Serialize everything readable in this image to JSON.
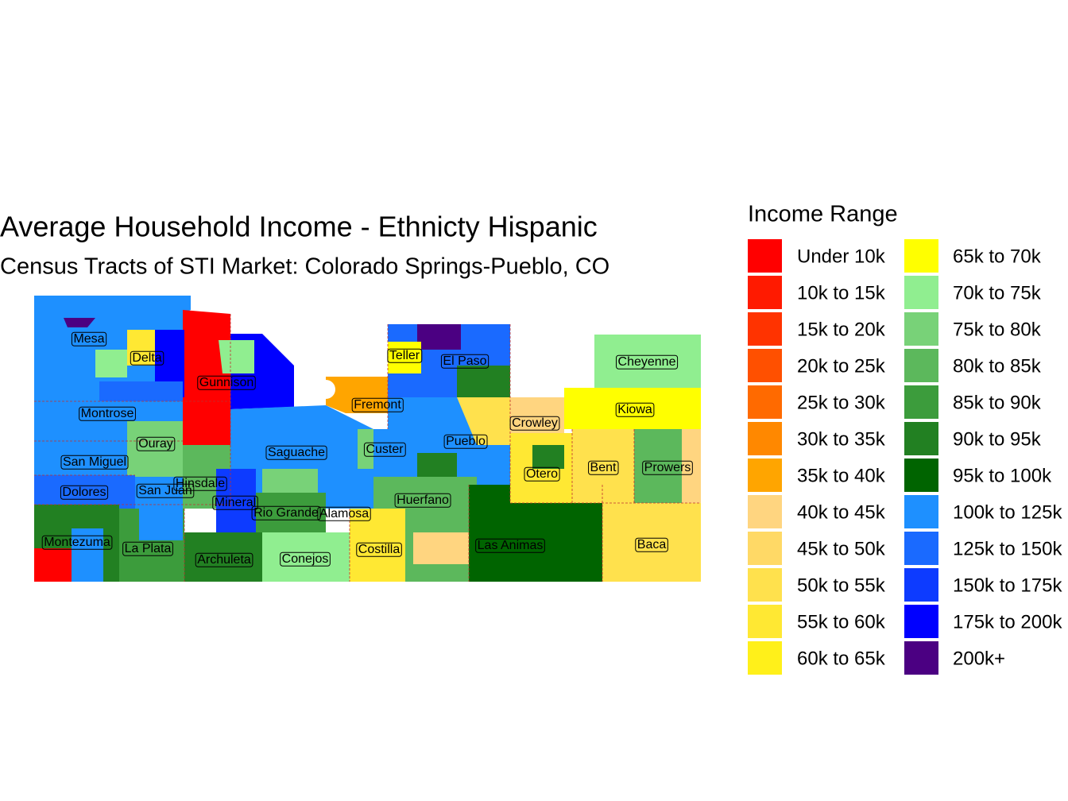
{
  "title": "Average Household Income - Ethnicty Hispanic",
  "subtitle": "Census Tracts of STI Market: Colorado Springs-Pueblo, CO",
  "legend": {
    "title": "Income Range",
    "items": [
      {
        "label": "Under 10k",
        "color": "#ff0000"
      },
      {
        "label": "10k to 15k",
        "color": "#ff1a00"
      },
      {
        "label": "15k to 20k",
        "color": "#ff3300"
      },
      {
        "label": "20k to 25k",
        "color": "#ff5000"
      },
      {
        "label": "25k to 30k",
        "color": "#ff6a00"
      },
      {
        "label": "30k to 35k",
        "color": "#ff8800"
      },
      {
        "label": "35k to 40k",
        "color": "#ffa500"
      },
      {
        "label": "40k to 45k",
        "color": "#ffd580"
      },
      {
        "label": "45k to 50k",
        "color": "#ffd966"
      },
      {
        "label": "50k to 55k",
        "color": "#ffe14d"
      },
      {
        "label": "55k to 60k",
        "color": "#ffe833"
      },
      {
        "label": "60k to 65k",
        "color": "#fff01a"
      },
      {
        "label": "65k to 70k",
        "color": "#ffff00"
      },
      {
        "label": "70k to 75k",
        "color": "#90ee90"
      },
      {
        "label": "75k to 80k",
        "color": "#78d278"
      },
      {
        "label": "80k to 85k",
        "color": "#5cb85c"
      },
      {
        "label": "85k to 90k",
        "color": "#3c9c3c"
      },
      {
        "label": "90k to 95k",
        "color": "#228022"
      },
      {
        "label": "95k to 100k",
        "color": "#006400"
      },
      {
        "label": "100k to 125k",
        "color": "#1e90ff"
      },
      {
        "label": "125k to 150k",
        "color": "#1a6aff"
      },
      {
        "label": "150k to 175k",
        "color": "#0d3bff"
      },
      {
        "label": "175k to 200k",
        "color": "#0000ff"
      },
      {
        "label": "200k+",
        "color": "#4b0082"
      }
    ]
  },
  "counties": [
    "Mesa",
    "Delta",
    "Gunnison",
    "Montrose",
    "Ouray",
    "San Miguel",
    "Dolores",
    "San Juan",
    "Hinsdale",
    "Mineral",
    "Rio Grande",
    "Alamosa",
    "Montezuma",
    "La Plata",
    "Archuleta",
    "Conejos",
    "Costilla",
    "Saguache",
    "Custer",
    "Fremont",
    "Teller",
    "El Paso",
    "Pueblo",
    "Huerfano",
    "Las Animas",
    "Crowley",
    "Otero",
    "Bent",
    "Kiowa",
    "Prowers",
    "Cheyenne",
    "Baca"
  ]
}
